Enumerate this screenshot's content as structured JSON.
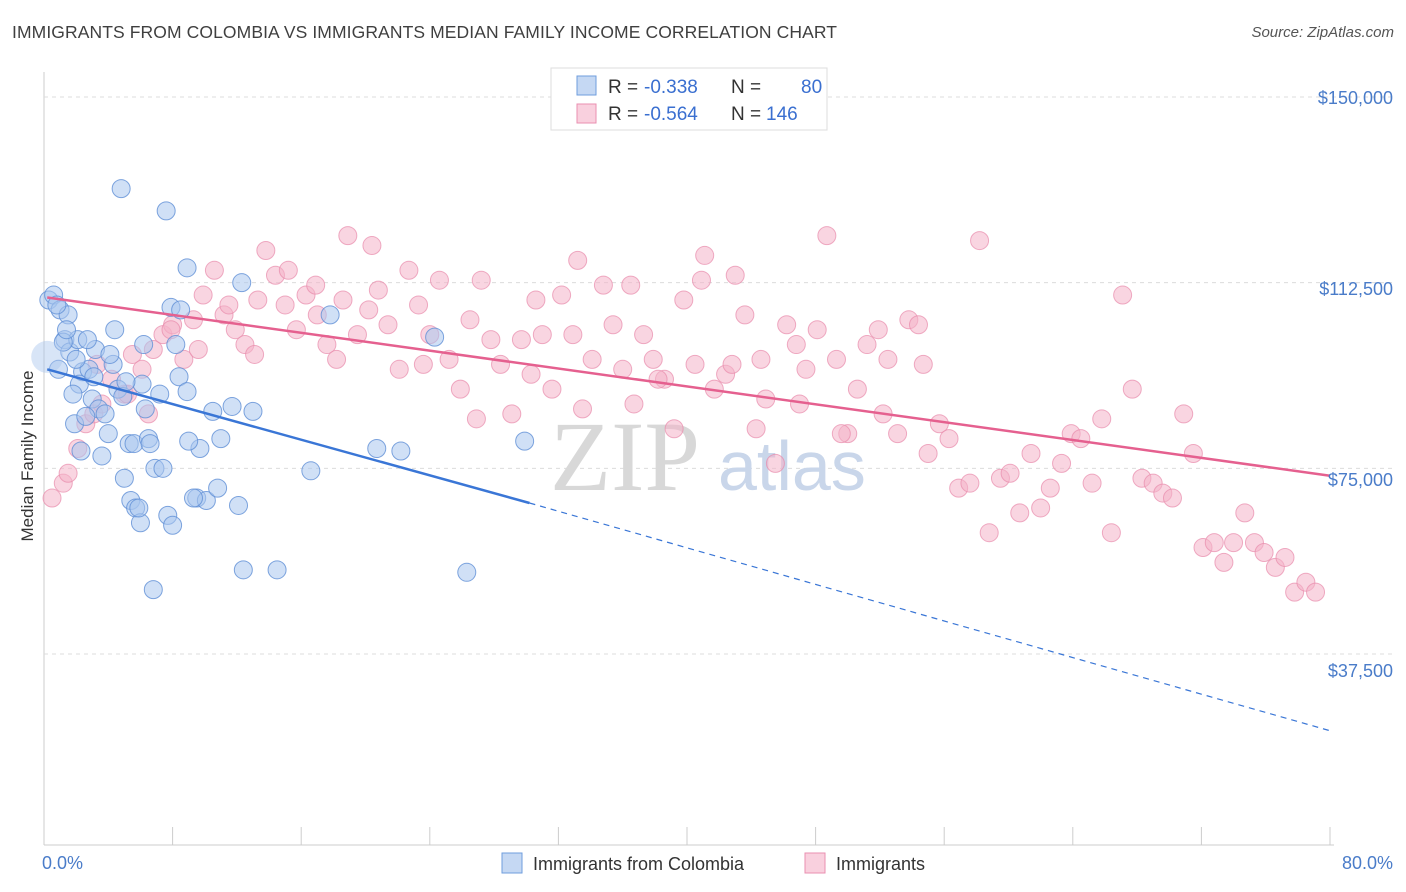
{
  "header": {
    "title": "IMMIGRANTS FROM COLOMBIA VS IMMIGRANTS MEDIAN FAMILY INCOME CORRELATION CHART",
    "source": "Source: ZipAtlas.com"
  },
  "watermark": {
    "zip": "ZIP",
    "atlas": "atlas"
  },
  "colors": {
    "blue": "#3a76d6",
    "blue_fill": "#a9c6ee",
    "pink": "#e5608f",
    "pink_fill": "#f4b3c9",
    "axis_label": "#4a7cc9"
  },
  "legend": {
    "r_label": "R =",
    "n_label": "N =",
    "rows": [
      {
        "r": "-0.338",
        "n": "80"
      },
      {
        "r": "-0.564",
        "n": "146"
      }
    ]
  },
  "bottom_legend": [
    "Immigrants from Colombia",
    "Immigrants"
  ],
  "chart_data": {
    "type": "scatter",
    "title": "IMMIGRANTS FROM COLOMBIA VS IMMIGRANTS MEDIAN FAMILY INCOME CORRELATION CHART",
    "xlabel": "",
    "ylabel": "Median Family Income",
    "xlim": [
      0,
      80
    ],
    "ylim": [
      0,
      155000
    ],
    "x_tick_labels": [
      "0.0%",
      "80.0%"
    ],
    "y_ticks": [
      37500,
      75000,
      112500,
      150000
    ],
    "y_tick_labels": [
      "$37,500",
      "$75,000",
      "$112,500",
      "$150,000"
    ],
    "grid": "horizontal dashed",
    "legend_position": "top-center",
    "series": [
      {
        "name": "Immigrants from Colombia",
        "r": -0.338,
        "n": 80,
        "trend": {
          "x0": 0.2,
          "y0": 95000,
          "x1": 30.2,
          "y1": 68000,
          "dashed_to_x": 80,
          "dashed_to_y": 22000
        },
        "points": [
          [
            0.3,
            109000
          ],
          [
            0.6,
            110000
          ],
          [
            1.0,
            107000
          ],
          [
            1.5,
            106000
          ],
          [
            1.3,
            101000
          ],
          [
            1.6,
            98500
          ],
          [
            0.9,
            95000
          ],
          [
            2.1,
            101000
          ],
          [
            2.4,
            94500
          ],
          [
            2.2,
            92000
          ],
          [
            2.8,
            95000
          ],
          [
            3.2,
            99000
          ],
          [
            4.4,
            103000
          ],
          [
            4.3,
            96000
          ],
          [
            4.6,
            91000
          ],
          [
            4.9,
            89500
          ],
          [
            5.3,
            80000
          ],
          [
            5.6,
            80000
          ],
          [
            6.2,
            100000
          ],
          [
            6.5,
            81000
          ],
          [
            6.3,
            87000
          ],
          [
            6.9,
            75000
          ],
          [
            7.2,
            90000
          ],
          [
            7.9,
            107500
          ],
          [
            8.5,
            107000
          ],
          [
            8.4,
            93500
          ],
          [
            8.9,
            90500
          ],
          [
            9.7,
            79000
          ],
          [
            9.5,
            69000
          ],
          [
            10.1,
            68500
          ],
          [
            11.7,
            87500
          ],
          [
            12.1,
            67500
          ],
          [
            13.0,
            86500
          ],
          [
            12.4,
            54500
          ],
          [
            14.5,
            54500
          ],
          [
            16.6,
            74500
          ],
          [
            17.8,
            106000
          ],
          [
            20.7,
            79000
          ],
          [
            22.2,
            78500
          ],
          [
            24.3,
            101500
          ],
          [
            26.3,
            54000
          ],
          [
            29.9,
            80500
          ],
          [
            1.9,
            84000
          ],
          [
            3.0,
            89000
          ],
          [
            3.4,
            87000
          ],
          [
            4.0,
            82000
          ],
          [
            5.0,
            73000
          ],
          [
            5.4,
            68500
          ],
          [
            5.7,
            67000
          ],
          [
            6.0,
            64000
          ],
          [
            6.8,
            50500
          ],
          [
            7.4,
            75000
          ],
          [
            7.7,
            65500
          ],
          [
            8.0,
            63500
          ],
          [
            9.0,
            80500
          ],
          [
            10.5,
            86500
          ],
          [
            11.0,
            81000
          ],
          [
            7.6,
            127000
          ],
          [
            4.8,
            131500
          ],
          [
            8.9,
            115500
          ],
          [
            12.3,
            112500
          ],
          [
            2.6,
            85500
          ],
          [
            3.6,
            77500
          ],
          [
            1.8,
            90000
          ],
          [
            2.0,
            97000
          ],
          [
            2.3,
            78500
          ],
          [
            3.8,
            86000
          ],
          [
            4.1,
            98000
          ],
          [
            6.1,
            92000
          ],
          [
            6.6,
            80000
          ],
          [
            5.9,
            67000
          ],
          [
            9.3,
            69000
          ],
          [
            10.8,
            71000
          ],
          [
            0.8,
            108000
          ],
          [
            1.2,
            100500
          ],
          [
            2.7,
            101000
          ],
          [
            3.1,
            93500
          ],
          [
            5.1,
            92500
          ],
          [
            8.2,
            100000
          ],
          [
            1.4,
            103000
          ]
        ]
      },
      {
        "name": "Immigrants",
        "r": -0.564,
        "n": 146,
        "trend": {
          "x0": 0.2,
          "y0": 109500,
          "x1": 80,
          "y1": 73500
        },
        "points": [
          [
            0.5,
            69000
          ],
          [
            1.2,
            72000
          ],
          [
            1.5,
            74000
          ],
          [
            2.1,
            79000
          ],
          [
            2.6,
            84000
          ],
          [
            3.1,
            86000
          ],
          [
            3.6,
            88000
          ],
          [
            4.2,
            93000
          ],
          [
            5.0,
            90000
          ],
          [
            5.5,
            98000
          ],
          [
            6.1,
            95000
          ],
          [
            6.8,
            99000
          ],
          [
            7.4,
            102000
          ],
          [
            8.0,
            104000
          ],
          [
            8.7,
            97000
          ],
          [
            9.3,
            105000
          ],
          [
            9.9,
            110000
          ],
          [
            10.6,
            115000
          ],
          [
            11.2,
            106000
          ],
          [
            11.9,
            103000
          ],
          [
            12.5,
            100000
          ],
          [
            13.1,
            98000
          ],
          [
            13.8,
            119000
          ],
          [
            14.4,
            114000
          ],
          [
            15.0,
            108000
          ],
          [
            15.7,
            103000
          ],
          [
            16.3,
            110000
          ],
          [
            17.0,
            106000
          ],
          [
            17.6,
            100000
          ],
          [
            18.2,
            97000
          ],
          [
            18.9,
            122000
          ],
          [
            19.5,
            102000
          ],
          [
            20.2,
            107000
          ],
          [
            20.8,
            111000
          ],
          [
            21.4,
            104000
          ],
          [
            22.1,
            95000
          ],
          [
            22.7,
            115000
          ],
          [
            23.3,
            108000
          ],
          [
            24.0,
            102000
          ],
          [
            24.6,
            113000
          ],
          [
            25.2,
            97000
          ],
          [
            25.9,
            91000
          ],
          [
            26.5,
            105000
          ],
          [
            27.2,
            113000
          ],
          [
            27.8,
            101000
          ],
          [
            28.4,
            96000
          ],
          [
            29.1,
            86000
          ],
          [
            29.7,
            101000
          ],
          [
            30.3,
            94000
          ],
          [
            31.0,
            102000
          ],
          [
            31.6,
            91000
          ],
          [
            32.2,
            110000
          ],
          [
            32.9,
            102000
          ],
          [
            33.5,
            87000
          ],
          [
            34.1,
            97000
          ],
          [
            34.8,
            112000
          ],
          [
            35.4,
            104000
          ],
          [
            36.0,
            95000
          ],
          [
            36.7,
            88000
          ],
          [
            37.3,
            102000
          ],
          [
            37.9,
            97000
          ],
          [
            38.6,
            93000
          ],
          [
            39.2,
            83000
          ],
          [
            39.8,
            109000
          ],
          [
            40.5,
            96000
          ],
          [
            41.1,
            118000
          ],
          [
            41.7,
            91000
          ],
          [
            42.4,
            94000
          ],
          [
            43.0,
            114000
          ],
          [
            43.6,
            106000
          ],
          [
            44.3,
            83000
          ],
          [
            44.9,
            89000
          ],
          [
            45.5,
            76000
          ],
          [
            46.2,
            104000
          ],
          [
            46.8,
            100000
          ],
          [
            47.4,
            95000
          ],
          [
            48.1,
            103000
          ],
          [
            48.7,
            122000
          ],
          [
            49.3,
            97000
          ],
          [
            50.0,
            82000
          ],
          [
            50.6,
            91000
          ],
          [
            51.2,
            100000
          ],
          [
            51.9,
            103000
          ],
          [
            52.5,
            97000
          ],
          [
            53.1,
            82000
          ],
          [
            53.8,
            105000
          ],
          [
            54.4,
            104000
          ],
          [
            55.0,
            78000
          ],
          [
            55.7,
            84000
          ],
          [
            56.3,
            81000
          ],
          [
            56.9,
            71000
          ],
          [
            57.6,
            72000
          ],
          [
            58.2,
            121000
          ],
          [
            58.8,
            62000
          ],
          [
            59.5,
            73000
          ],
          [
            60.1,
            74000
          ],
          [
            60.7,
            66000
          ],
          [
            61.4,
            78000
          ],
          [
            62.0,
            67000
          ],
          [
            62.6,
            71000
          ],
          [
            63.3,
            76000
          ],
          [
            63.9,
            82000
          ],
          [
            64.5,
            81000
          ],
          [
            65.2,
            72000
          ],
          [
            65.8,
            85000
          ],
          [
            66.4,
            62000
          ],
          [
            67.1,
            110000
          ],
          [
            67.7,
            91000
          ],
          [
            68.3,
            73000
          ],
          [
            69.0,
            72000
          ],
          [
            69.6,
            70000
          ],
          [
            70.2,
            69000
          ],
          [
            70.9,
            86000
          ],
          [
            71.5,
            78000
          ],
          [
            72.1,
            59000
          ],
          [
            72.8,
            60000
          ],
          [
            73.4,
            56000
          ],
          [
            74.0,
            60000
          ],
          [
            74.7,
            66000
          ],
          [
            75.3,
            60000
          ],
          [
            75.9,
            58000
          ],
          [
            76.6,
            55000
          ],
          [
            77.2,
            57000
          ],
          [
            77.8,
            50000
          ],
          [
            78.5,
            52000
          ],
          [
            79.1,
            50000
          ],
          [
            3.3,
            96000
          ],
          [
            5.2,
            90000
          ],
          [
            6.5,
            86000
          ],
          [
            7.9,
            103000
          ],
          [
            9.6,
            99000
          ],
          [
            11.5,
            108000
          ],
          [
            13.3,
            109000
          ],
          [
            15.2,
            115000
          ],
          [
            16.9,
            112000
          ],
          [
            18.6,
            109000
          ],
          [
            20.4,
            120000
          ],
          [
            23.6,
            96000
          ],
          [
            26.9,
            85000
          ],
          [
            30.6,
            109000
          ],
          [
            33.2,
            117000
          ],
          [
            36.5,
            112000
          ],
          [
            38.2,
            93000
          ],
          [
            40.9,
            113000
          ],
          [
            42.8,
            96000
          ],
          [
            44.6,
            97000
          ],
          [
            47.0,
            88000
          ],
          [
            49.6,
            82000
          ],
          [
            52.2,
            86000
          ],
          [
            54.7,
            96000
          ]
        ]
      }
    ]
  }
}
